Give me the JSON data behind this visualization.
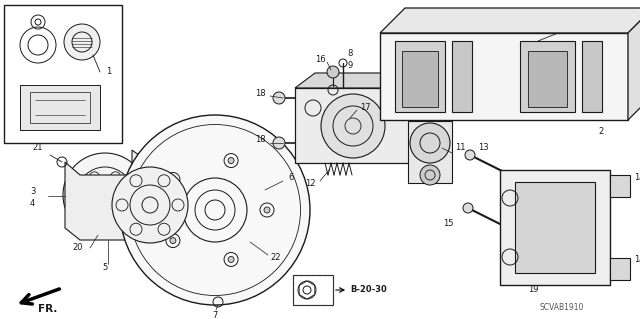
{
  "bg_color": "#ffffff",
  "line_color": "#1a1a1a",
  "fig_width": 6.4,
  "fig_height": 3.19,
  "dpi": 100,
  "watermark": "SCVAB1910",
  "b_label": "B-20-30",
  "fr_label": "FR."
}
